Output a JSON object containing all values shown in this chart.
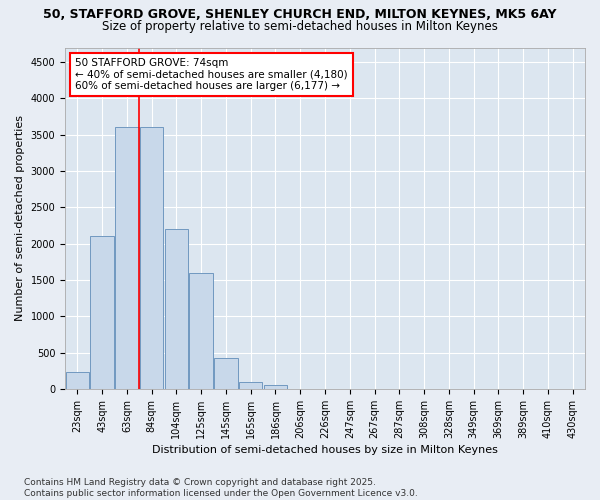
{
  "title_line1": "50, STAFFORD GROVE, SHENLEY CHURCH END, MILTON KEYNES, MK5 6AY",
  "title_line2": "Size of property relative to semi-detached houses in Milton Keynes",
  "xlabel": "Distribution of semi-detached houses by size in Milton Keynes",
  "ylabel": "Number of semi-detached properties",
  "categories": [
    "23sqm",
    "43sqm",
    "63sqm",
    "84sqm",
    "104sqm",
    "125sqm",
    "145sqm",
    "165sqm",
    "186sqm",
    "206sqm",
    "226sqm",
    "247sqm",
    "267sqm",
    "287sqm",
    "308sqm",
    "328sqm",
    "349sqm",
    "369sqm",
    "389sqm",
    "410sqm",
    "430sqm"
  ],
  "values": [
    230,
    2100,
    3600,
    3600,
    2200,
    1600,
    430,
    100,
    55,
    0,
    0,
    0,
    0,
    0,
    0,
    0,
    0,
    0,
    0,
    0,
    0
  ],
  "bar_color": "#c8d8ea",
  "bar_edge_color": "#7098c0",
  "vline_x": 3.0,
  "vline_color": "red",
  "annotation_text": "50 STAFFORD GROVE: 74sqm\n← 40% of semi-detached houses are smaller (4,180)\n60% of semi-detached houses are larger (6,177) →",
  "annotation_box_color": "white",
  "annotation_box_edge_color": "red",
  "ylim": [
    0,
    4700
  ],
  "yticks": [
    0,
    500,
    1000,
    1500,
    2000,
    2500,
    3000,
    3500,
    4000,
    4500
  ],
  "bg_color": "#e8edf4",
  "plot_bg_color": "#dce6f0",
  "grid_color": "white",
  "footnote": "Contains HM Land Registry data © Crown copyright and database right 2025.\nContains public sector information licensed under the Open Government Licence v3.0.",
  "title_fontsize": 9,
  "subtitle_fontsize": 8.5,
  "axis_label_fontsize": 8,
  "tick_fontsize": 7,
  "annotation_fontsize": 7.5,
  "footnote_fontsize": 6.5
}
